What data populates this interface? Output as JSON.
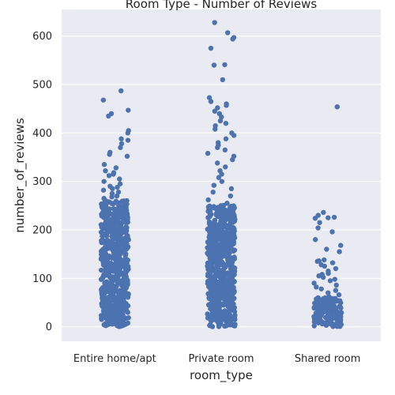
{
  "chart_data": {
    "type": "scatter",
    "subtype": "strip",
    "title": "Room Type - Number of Reviews",
    "xlabel": "room_type",
    "ylabel": "number_of_reviews",
    "categories": [
      "Entire home/apt",
      "Private room",
      "Shared room"
    ],
    "yticks": [
      0,
      100,
      200,
      300,
      400,
      500,
      600
    ],
    "ylim": [
      -30,
      655
    ],
    "grid": true,
    "colors": {
      "points": "#4c72b0",
      "background": "#eaeaf2",
      "grid": "#ffffff"
    },
    "series": [
      {
        "category": "Entire home/apt",
        "dense_range": [
          0,
          260
        ],
        "values": [
          487,
          468,
          447,
          440,
          435,
          405,
          400,
          388,
          385,
          378,
          370,
          360,
          356,
          352,
          335,
          328,
          322,
          318,
          315,
          312,
          305,
          300,
          295,
          290,
          288,
          285,
          282,
          278,
          275,
          270,
          268,
          265
        ]
      },
      {
        "category": "Private room",
        "dense_range": [
          0,
          250
        ],
        "values": [
          628,
          607,
          597,
          594,
          575,
          541,
          540,
          510,
          473,
          465,
          460,
          457,
          452,
          445,
          440,
          433,
          425,
          420,
          415,
          408,
          400,
          395,
          388,
          380,
          375,
          370,
          365,
          358,
          352,
          345,
          338,
          330,
          322,
          315,
          308,
          300,
          292,
          285,
          278,
          270,
          262,
          255
        ]
      },
      {
        "category": "Shared room",
        "dense_range": [
          0,
          60
        ],
        "values": [
          454,
          236,
          230,
          226,
          225,
          224,
          215,
          204,
          196,
          180,
          168,
          160,
          155,
          138,
          136,
          135,
          132,
          128,
          125,
          120,
          115,
          110,
          108,
          105,
          102,
          98,
          95,
          90,
          86,
          82,
          78,
          75,
          70,
          66,
          62
        ]
      }
    ]
  }
}
